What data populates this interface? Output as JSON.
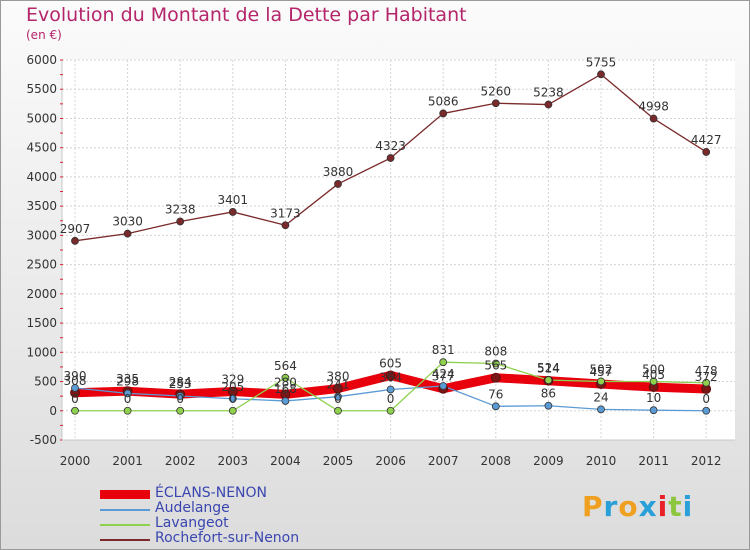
{
  "title": "Evolution du Montant de la Dette par Habitant",
  "subtitle": "(en €)",
  "brand": {
    "letters": [
      "P",
      "r",
      "o",
      "x",
      "i",
      "t",
      "i"
    ],
    "colors": [
      "#f0a020",
      "#2aa0d8",
      "#f0a020",
      "#2aa0d8",
      "#e8202a",
      "#8cc63f",
      "#2aa0d8"
    ]
  },
  "chart_data": {
    "type": "line",
    "x": [
      "2000",
      "2001",
      "2002",
      "2003",
      "2004",
      "2005",
      "2006",
      "2007",
      "2008",
      "2009",
      "2010",
      "2011",
      "2012"
    ],
    "ylim": [
      -500,
      6000
    ],
    "yticks": [
      "-500",
      "0",
      "500",
      "1000",
      "1500",
      "2000",
      "2500",
      "3000",
      "3500",
      "4000",
      "4500",
      "5000",
      "5500",
      "6000"
    ],
    "grid": true,
    "legend": "bottom-left",
    "series": [
      {
        "name": "ÉCLANS-NENON",
        "color": "#e8000d",
        "thick": true,
        "values": [
          308,
          335,
          284,
          329,
          280,
          380,
          605,
          377,
          565,
          514,
          457,
          405,
          372
        ],
        "labels": [
          "308",
          "335",
          "284",
          "329",
          "280",
          "380",
          "605",
          "377",
          "565",
          "514",
          "457",
          "405",
          "372"
        ]
      },
      {
        "name": "Audelange",
        "color": "#5b9bd5",
        "values": [
          390,
          298,
          253,
          205,
          168,
          241,
          364,
          424,
          76,
          86,
          24,
          10,
          0
        ],
        "labels": [
          "390",
          "298",
          "253",
          "205",
          "168",
          "241",
          "364",
          "424",
          "76",
          "86",
          "24",
          "10",
          "0"
        ]
      },
      {
        "name": "Lavangeot",
        "color": "#8fd14f",
        "values": [
          0,
          0,
          0,
          0,
          564,
          0,
          0,
          831,
          808,
          524,
          502,
          500,
          478
        ],
        "labels": [
          "0",
          "0",
          "0",
          "0",
          "564",
          "0",
          "0",
          "831",
          "808",
          "524",
          "502",
          "500",
          "478"
        ]
      },
      {
        "name": "Rochefort-sur-Nenon",
        "color": "#7a2a2a",
        "values": [
          2907,
          3030,
          3238,
          3401,
          3173,
          3880,
          4323,
          5086,
          5260,
          5238,
          5755,
          4998,
          4427
        ],
        "labels": [
          "2907",
          "3030",
          "3238",
          "3401",
          "3173",
          "3880",
          "4323",
          "5086",
          "5260",
          "5238",
          "5755",
          "4998",
          "4427"
        ]
      }
    ]
  }
}
